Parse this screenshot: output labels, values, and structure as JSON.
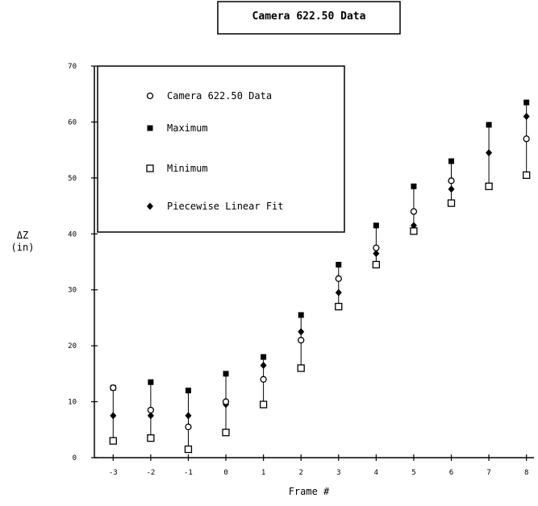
{
  "chart_data": {
    "type": "scatter",
    "title": "Camera 622.50 Data",
    "xlabel": "Frame #",
    "ylabel_line1": "ΔZ",
    "ylabel_line2": "(in)",
    "xlim": [
      -3.5,
      8.2
    ],
    "ylim": [
      0,
      70
    ],
    "x_ticks": [
      -3,
      -2,
      -1,
      0,
      1,
      2,
      3,
      4,
      5,
      6,
      7,
      8
    ],
    "x_tick_labels": [
      "-3",
      "-2",
      "-1",
      "0",
      "1",
      "2",
      "3",
      "4",
      "5",
      "6",
      "7",
      "8"
    ],
    "y_ticks": [
      0,
      10,
      20,
      30,
      40,
      50,
      60,
      70
    ],
    "y_tick_labels": [
      "0",
      "10",
      "20",
      "30",
      "40",
      "50",
      "60",
      "70"
    ],
    "legend_placement": "top-left",
    "series": [
      {
        "name": "Camera 622.50 Data",
        "marker": "open-circle",
        "points": [
          [
            -3,
            12.5
          ],
          [
            -2,
            8.5
          ],
          [
            -1,
            5.5
          ],
          [
            0,
            10
          ],
          [
            1,
            14
          ],
          [
            2,
            21
          ],
          [
            3,
            32
          ],
          [
            4,
            37.5
          ],
          [
            5,
            44
          ],
          [
            6,
            49.5
          ],
          [
            8,
            57
          ]
        ]
      },
      {
        "name": "Maximum",
        "marker": "filled-square",
        "points": [
          [
            -3,
            12.5
          ],
          [
            -2,
            13.5
          ],
          [
            -1,
            12
          ],
          [
            0,
            15
          ],
          [
            1,
            18
          ],
          [
            2,
            25.5
          ],
          [
            3,
            34.5
          ],
          [
            4,
            41.5
          ],
          [
            5,
            48.5
          ],
          [
            6,
            53
          ],
          [
            7,
            59.5
          ],
          [
            8,
            63.5
          ]
        ]
      },
      {
        "name": "Minimum",
        "marker": "open-square",
        "points": [
          [
            -3,
            3
          ],
          [
            -2,
            3.5
          ],
          [
            -1,
            1.5
          ],
          [
            0,
            4.5
          ],
          [
            1,
            9.5
          ],
          [
            2,
            16
          ],
          [
            3,
            27
          ],
          [
            4,
            34.5
          ],
          [
            5,
            40.5
          ],
          [
            6,
            45.5
          ],
          [
            7,
            48.5
          ],
          [
            8,
            50.5
          ]
        ]
      },
      {
        "name": "Piecewise Linear Fit",
        "marker": "filled-diamond",
        "points": [
          [
            -3,
            7.5
          ],
          [
            -2,
            7.5
          ],
          [
            -1,
            7.5
          ],
          [
            0,
            9.5
          ],
          [
            1,
            16.5
          ],
          [
            2,
            22.5
          ],
          [
            3,
            29.5
          ],
          [
            4,
            36.5
          ],
          [
            5,
            41.5
          ],
          [
            6,
            48
          ],
          [
            7,
            54.5
          ],
          [
            8,
            61
          ]
        ]
      }
    ]
  }
}
